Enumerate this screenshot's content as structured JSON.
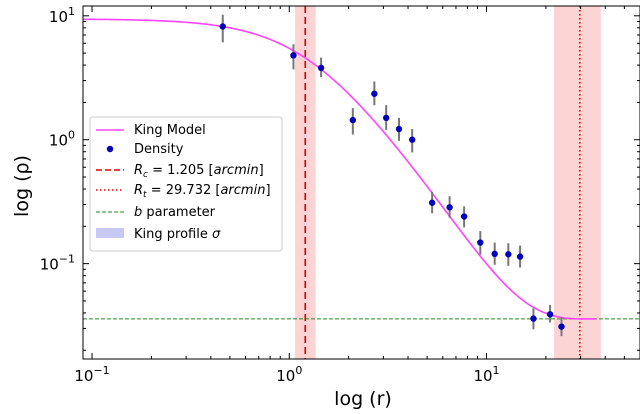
{
  "chart_data": {
    "type": "scatter",
    "title": "",
    "xlabel": "log (r)",
    "ylabel": "log (ρ)",
    "xscale": "log",
    "yscale": "log",
    "xlim": [
      0.09,
      60
    ],
    "ylim": [
      0.017,
      12
    ],
    "grid": false,
    "legend_position": "center-left",
    "x_ticks": [
      {
        "value": 0.1,
        "base": "10",
        "exp": "−1"
      },
      {
        "value": 1,
        "base": "10",
        "exp": "0"
      },
      {
        "value": 10,
        "base": "10",
        "exp": "1"
      }
    ],
    "y_ticks": [
      {
        "value": 0.1,
        "base": "10",
        "exp": "−1"
      },
      {
        "value": 1,
        "base": "10",
        "exp": "0"
      },
      {
        "value": 10,
        "base": "10",
        "exp": "1"
      }
    ],
    "king_model": {
      "name": "King Model",
      "color": "#ff44ff",
      "rho0": 9.4,
      "rc": 1.205,
      "rt": 29.732,
      "background": 0.0358,
      "x_range": [
        0.09,
        36
      ]
    },
    "density": {
      "name": "Density",
      "color": "#0000bb",
      "errorbar_color": "#777777",
      "points": [
        {
          "x": 0.46,
          "y": 8.2,
          "ylo": 6.1,
          "yhi": 10.2
        },
        {
          "x": 1.05,
          "y": 4.8,
          "ylo": 3.7,
          "yhi": 5.9
        },
        {
          "x": 1.45,
          "y": 3.8,
          "ylo": 3.2,
          "yhi": 4.6
        },
        {
          "x": 2.1,
          "y": 1.44,
          "ylo": 1.1,
          "yhi": 1.8
        },
        {
          "x": 2.7,
          "y": 2.35,
          "ylo": 1.9,
          "yhi": 2.95
        },
        {
          "x": 3.1,
          "y": 1.5,
          "ylo": 1.2,
          "yhi": 1.9
        },
        {
          "x": 3.6,
          "y": 1.22,
          "ylo": 0.98,
          "yhi": 1.5
        },
        {
          "x": 4.2,
          "y": 1.0,
          "ylo": 0.79,
          "yhi": 1.22
        },
        {
          "x": 5.3,
          "y": 0.31,
          "ylo": 0.255,
          "yhi": 0.38
        },
        {
          "x": 6.5,
          "y": 0.285,
          "ylo": 0.235,
          "yhi": 0.35
        },
        {
          "x": 7.7,
          "y": 0.24,
          "ylo": 0.196,
          "yhi": 0.29
        },
        {
          "x": 9.3,
          "y": 0.148,
          "ylo": 0.118,
          "yhi": 0.183
        },
        {
          "x": 11.0,
          "y": 0.12,
          "ylo": 0.098,
          "yhi": 0.148
        },
        {
          "x": 12.9,
          "y": 0.119,
          "ylo": 0.096,
          "yhi": 0.146
        },
        {
          "x": 14.8,
          "y": 0.114,
          "ylo": 0.093,
          "yhi": 0.14
        },
        {
          "x": 17.3,
          "y": 0.036,
          "ylo": 0.0295,
          "yhi": 0.0435
        },
        {
          "x": 21.0,
          "y": 0.039,
          "ylo": 0.0335,
          "yhi": 0.0465
        },
        {
          "x": 24.0,
          "y": 0.031,
          "ylo": 0.026,
          "yhi": 0.037
        }
      ]
    },
    "rc_line": {
      "label": "R_c = 1.205 [arcmin]",
      "sub": "c",
      "value_text": "1.205",
      "unit": "arcmin",
      "x": 1.205,
      "color": "#dd0000",
      "band": [
        1.07,
        1.36
      ]
    },
    "rt_line": {
      "label": "R_t = 29.732 [arcmin]",
      "sub": "t",
      "value_text": "29.732",
      "unit": "arcmin",
      "x": 29.732,
      "color": "#dd0000",
      "band": [
        22,
        38
      ]
    },
    "b_parameter": {
      "label": "b parameter",
      "symbol": "b",
      "text": " parameter",
      "y": 0.0358,
      "color": "#228b22"
    },
    "king_sigma": {
      "label": "King profile σ",
      "text": "King profile ",
      "symbol": "σ",
      "color": "#c8c8f4",
      "band_color": "#fcd4d4"
    }
  }
}
